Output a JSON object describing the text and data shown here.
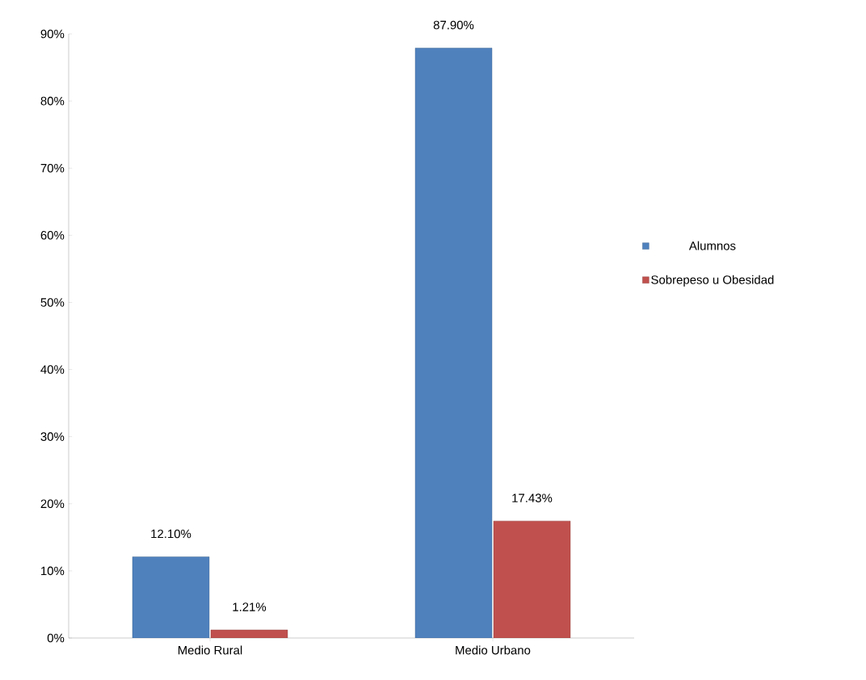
{
  "chart_data": {
    "type": "bar",
    "categories": [
      "Medio Rural",
      "Medio Urbano"
    ],
    "series": [
      {
        "name": "Alumnos",
        "color": "#4f81bd",
        "values": [
          12.1,
          87.9
        ],
        "value_labels": [
          "12.10%",
          "87.90%"
        ]
      },
      {
        "name": "Sobrepeso u Obesidad",
        "color": "#c0504d",
        "values": [
          1.21,
          17.43
        ],
        "value_labels": [
          "1.21%",
          "17.43%"
        ]
      }
    ],
    "ylim": [
      0,
      90
    ],
    "yticks": [
      {
        "value": 0,
        "label": "0%"
      },
      {
        "value": 10,
        "label": "10%"
      },
      {
        "value": 20,
        "label": "20%"
      },
      {
        "value": 30,
        "label": "30%"
      },
      {
        "value": 40,
        "label": "40%"
      },
      {
        "value": 50,
        "label": "50%"
      },
      {
        "value": 60,
        "label": "60%"
      },
      {
        "value": 70,
        "label": "70%"
      },
      {
        "value": 80,
        "label": "80%"
      },
      {
        "value": 90,
        "label": "90%"
      }
    ],
    "grid": false,
    "legend": "right"
  }
}
